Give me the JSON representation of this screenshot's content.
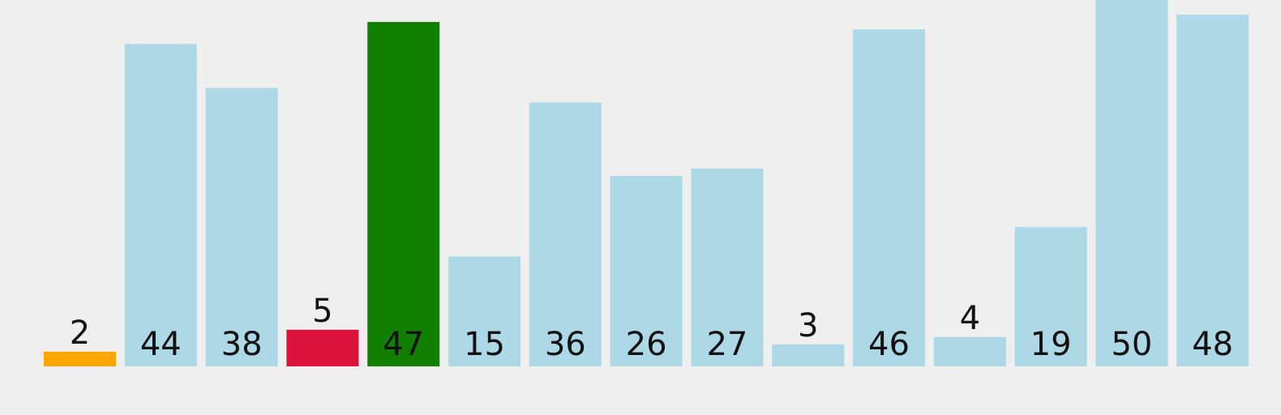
{
  "chart_data": {
    "type": "bar",
    "values": [
      2,
      44,
      38,
      5,
      47,
      15,
      36,
      26,
      27,
      3,
      46,
      4,
      19,
      50,
      48
    ],
    "ylim": [
      0,
      50
    ],
    "grid": false,
    "legend": "none",
    "highlights": {
      "0": "#FFA500",
      "3": "#DC143C",
      "4": "#118000"
    },
    "default_color": "#ADD8E6",
    "value_labels": [
      "2",
      "44",
      "38",
      "5",
      "47",
      "15",
      "36",
      "26",
      "27",
      "3",
      "46",
      "4",
      "19",
      "50",
      "48"
    ]
  },
  "colors": {
    "background": "#EFEFEF",
    "bar": "#ADD8E6",
    "label": "#111111"
  }
}
